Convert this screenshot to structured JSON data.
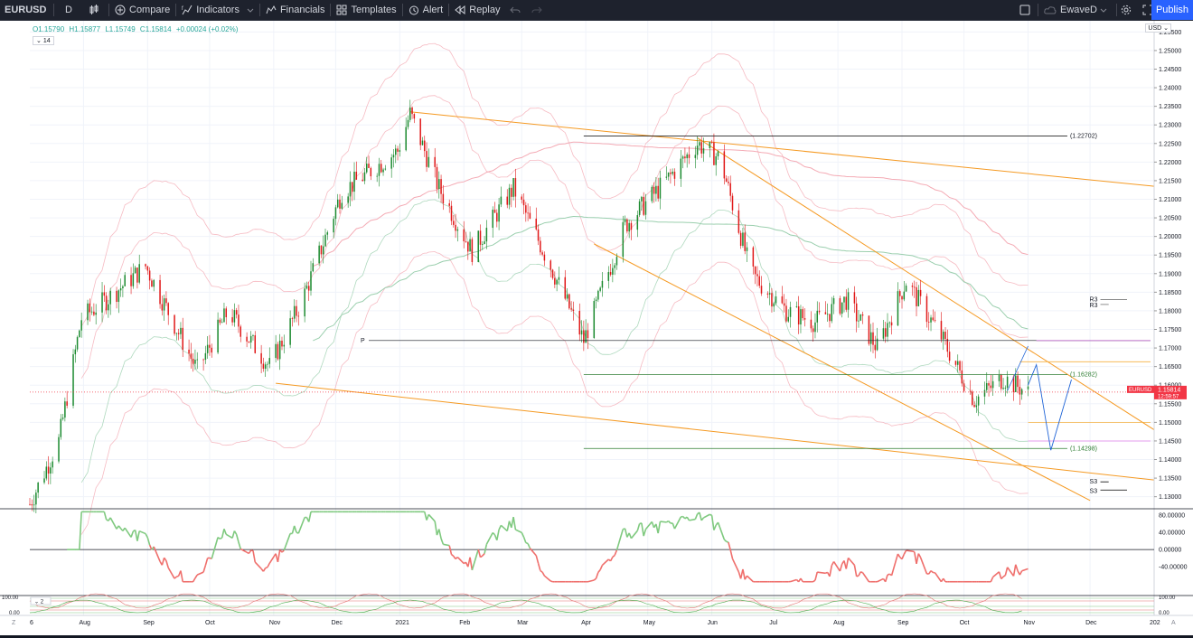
{
  "toolbar": {
    "symbol": "EURUSD",
    "interval": "D",
    "compare": "Compare",
    "indicators": "Indicators",
    "financials": "Financials",
    "templates": "Templates",
    "alert": "Alert",
    "replay": "Replay",
    "layout_name": "EwaveD",
    "publish": "Publish"
  },
  "legend": {
    "open": "O1.15790",
    "high": "H1.15877",
    "low": "L1.15749",
    "close": "C1.15814",
    "change": "+0.00024 (+0.02%)",
    "indicator_badge": "14",
    "currency": "USD"
  },
  "price_axis": {
    "ticks": [
      "1.25500",
      "1.25000",
      "1.24500",
      "1.24000",
      "1.23500",
      "1.23000",
      "1.22500",
      "1.22000",
      "1.21500",
      "1.21000",
      "1.20500",
      "1.20000",
      "1.19500",
      "1.19000",
      "1.18500",
      "1.18000",
      "1.17500",
      "1.17000",
      "1.16500",
      "1.16000",
      "1.15500",
      "1.15000",
      "1.14500",
      "1.14000",
      "1.13500",
      "1.13000"
    ],
    "current_symbol": "EURUSD",
    "current_price": "1.15814",
    "countdown": "12:59:57"
  },
  "osc_axis": {
    "ticks": [
      "80.00000",
      "40.00000",
      "0.00000",
      "-40.00000"
    ]
  },
  "lower_axis": {
    "ticks": [
      "100.00",
      "0.00"
    ],
    "badge": "2",
    "right_ticks": [
      "100.00",
      "0.00"
    ]
  },
  "time_axis": {
    "labels": [
      "6",
      "Aug",
      "Sep",
      "Oct",
      "Nov",
      "Dec",
      "2021",
      "Feb",
      "Mar",
      "Apr",
      "May",
      "Jun",
      "Jul",
      "Aug",
      "Sep",
      "Oct",
      "Nov",
      "Dec",
      "202"
    ]
  },
  "annotations": {
    "level_high": "(1.22702)",
    "level_mid": "(1.16282)",
    "level_low": "(1.14298)",
    "pivot": "P",
    "r3a": "R3",
    "r3b": "R3",
    "s3a": "S3",
    "s3b": "S3"
  },
  "colors": {
    "up": "#1b8a2f",
    "down": "#e01818",
    "trend": "#f59a23",
    "band": "#f4aab4",
    "ma": "#9bcfae",
    "osc_up": "#7fc97f",
    "osc_down": "#ef6f6c"
  },
  "chart_data": {
    "type": "candlestick",
    "symbol": "EURUSD",
    "interval": "D",
    "y_range": [
      1.127,
      1.258
    ],
    "x_range": [
      "2020-07-06",
      "2022-01-01"
    ],
    "close_path": [
      [
        "2020-07-06",
        1.128
      ],
      [
        "2020-07-20",
        1.145
      ],
      [
        "2020-07-31",
        1.178
      ],
      [
        "2020-08-12",
        1.183
      ],
      [
        "2020-08-31",
        1.192
      ],
      [
        "2020-09-25",
        1.164
      ],
      [
        "2020-10-10",
        1.18
      ],
      [
        "2020-10-30",
        1.165
      ],
      [
        "2020-11-15",
        1.183
      ],
      [
        "2020-12-04",
        1.212
      ],
      [
        "2020-12-31",
        1.223
      ],
      [
        "2021-01-06",
        1.233
      ],
      [
        "2021-01-20",
        1.213
      ],
      [
        "2021-02-05",
        1.196
      ],
      [
        "2021-02-25",
        1.213
      ],
      [
        "2021-03-15",
        1.192
      ],
      [
        "2021-03-31",
        1.172
      ],
      [
        "2021-04-20",
        1.203
      ],
      [
        "2021-05-10",
        1.215
      ],
      [
        "2021-05-25",
        1.225
      ],
      [
        "2021-06-05",
        1.221
      ],
      [
        "2021-06-20",
        1.19
      ],
      [
        "2021-07-07",
        1.18
      ],
      [
        "2021-07-21",
        1.177
      ],
      [
        "2021-08-05",
        1.183
      ],
      [
        "2021-08-20",
        1.17
      ],
      [
        "2021-09-03",
        1.188
      ],
      [
        "2021-09-20",
        1.173
      ],
      [
        "2021-10-06",
        1.156
      ],
      [
        "2021-10-20",
        1.162
      ],
      [
        "2021-11-01",
        1.158
      ]
    ],
    "horizontal_levels": [
      1.22702,
      1.16282,
      1.14298
    ],
    "series": [
      {
        "name": "EURUSD",
        "last": 1.15814
      }
    ]
  }
}
